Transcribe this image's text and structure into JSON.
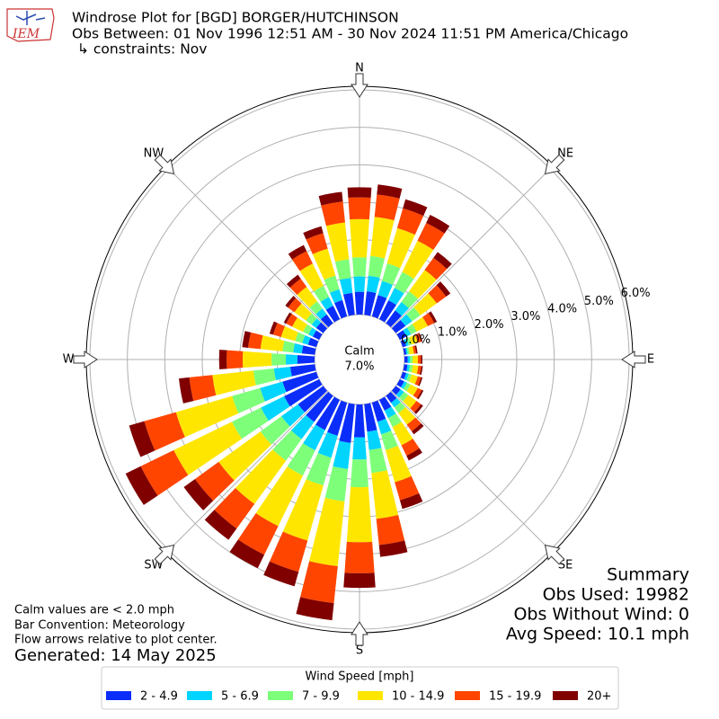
{
  "chart_data": {
    "type": "windrose",
    "logo_text": "IEM",
    "title": "Windrose Plot for [BGD] BORGER/HUTCHINSON",
    "subtitle": "Obs Between: 01 Nov 1996 12:51 AM - 30 Nov 2024 11:51 PM America/Chicago",
    "constraints": "↳ constraints: Nov",
    "compass_labels": [
      "N",
      "NE",
      "E",
      "SE",
      "S",
      "SW",
      "W",
      "NW"
    ],
    "rlim": [
      0,
      6
    ],
    "rticks": [
      {
        "value": 0,
        "label": "0.0%"
      },
      {
        "value": 1,
        "label": "1.0%"
      },
      {
        "value": 2,
        "label": "2.0%"
      },
      {
        "value": 3,
        "label": "3.0%"
      },
      {
        "value": 4,
        "label": "4.0%"
      },
      {
        "value": 5,
        "label": "5.0%"
      },
      {
        "value": 6,
        "label": "6.0%"
      }
    ],
    "grid": true,
    "calm_label": "Calm",
    "calm_value": 7.0,
    "calm_value_label": "7.0%",
    "legend_title": "Wind Speed [mph]",
    "series": [
      {
        "name": "2 - 4.9",
        "color": "#0b2dfa",
        "values": [
          0.61,
          0.63,
          0.59,
          0.56,
          0.42,
          0.32,
          0.2,
          0.1,
          0.06,
          0.09,
          0.09,
          0.1,
          0.13,
          0.16,
          0.23,
          0.32,
          0.53,
          0.74,
          0.88,
          1.04,
          0.92,
          0.9,
          0.86,
          0.83,
          1.04,
          0.94,
          0.66,
          0.46,
          0.35,
          0.23,
          0.19,
          0.23,
          0.29,
          0.4,
          0.45,
          0.59
        ]
      },
      {
        "name": "5 - 6.9",
        "color": "#00d4ff",
        "values": [
          0.41,
          0.42,
          0.39,
          0.37,
          0.28,
          0.22,
          0.13,
          0.07,
          0.04,
          0.06,
          0.06,
          0.07,
          0.08,
          0.11,
          0.15,
          0.22,
          0.35,
          0.49,
          0.59,
          0.7,
          0.61,
          0.6,
          0.57,
          0.55,
          0.69,
          0.62,
          0.44,
          0.31,
          0.23,
          0.16,
          0.13,
          0.15,
          0.19,
          0.26,
          0.3,
          0.4
        ]
      },
      {
        "name": "7 - 9.9",
        "color": "#7dff7a",
        "values": [
          0.51,
          0.53,
          0.49,
          0.47,
          0.35,
          0.27,
          0.17,
          0.08,
          0.05,
          0.07,
          0.08,
          0.08,
          0.11,
          0.14,
          0.19,
          0.27,
          0.44,
          0.62,
          0.74,
          0.87,
          0.77,
          0.75,
          0.71,
          0.69,
          0.86,
          0.78,
          0.55,
          0.38,
          0.29,
          0.2,
          0.16,
          0.19,
          0.24,
          0.33,
          0.38,
          0.5
        ]
      },
      {
        "name": "10 - 14.9",
        "color": "#ffe600",
        "values": [
          1.02,
          1.05,
          0.98,
          0.93,
          0.71,
          0.54,
          0.33,
          0.17,
          0.11,
          0.14,
          0.15,
          0.17,
          0.21,
          0.27,
          0.38,
          0.54,
          0.89,
          1.23,
          1.47,
          1.74,
          1.53,
          1.5,
          1.43,
          1.38,
          1.73,
          1.56,
          1.1,
          0.77,
          0.59,
          0.39,
          0.32,
          0.38,
          0.48,
          0.66,
          0.75,
          0.99
        ]
      },
      {
        "name": "15 - 19.9",
        "color": "#ff4500",
        "values": [
          0.58,
          0.6,
          0.55,
          0.53,
          0.4,
          0.31,
          0.19,
          0.09,
          0.06,
          0.08,
          0.08,
          0.09,
          0.12,
          0.15,
          0.22,
          0.31,
          0.5,
          0.7,
          0.83,
          0.99,
          0.87,
          0.85,
          0.81,
          0.78,
          0.98,
          0.88,
          0.62,
          0.43,
          0.33,
          0.22,
          0.18,
          0.21,
          0.27,
          0.37,
          0.43,
          0.56
        ]
      },
      {
        "name": "20+",
        "color": "#800000",
        "values": [
          0.27,
          0.27,
          0.25,
          0.24,
          0.19,
          0.14,
          0.08,
          0.04,
          0.04,
          0.04,
          0.04,
          0.04,
          0.05,
          0.07,
          0.1,
          0.14,
          0.24,
          0.32,
          0.39,
          0.46,
          0.4,
          0.4,
          0.37,
          0.37,
          0.45,
          0.42,
          0.28,
          0.2,
          0.16,
          0.1,
          0.07,
          0.09,
          0.13,
          0.18,
          0.19,
          0.26
        ]
      }
    ],
    "notes": [
      "Calm values are < 2.0 mph",
      "Bar Convention: Meteorology",
      "Flow arrows relative to plot center."
    ],
    "generated": "Generated: 14 May 2025",
    "summary": [
      "Summary",
      "Obs Used: 19982",
      "Obs Without Wind: 0",
      "Avg Speed: 10.1 mph"
    ]
  }
}
